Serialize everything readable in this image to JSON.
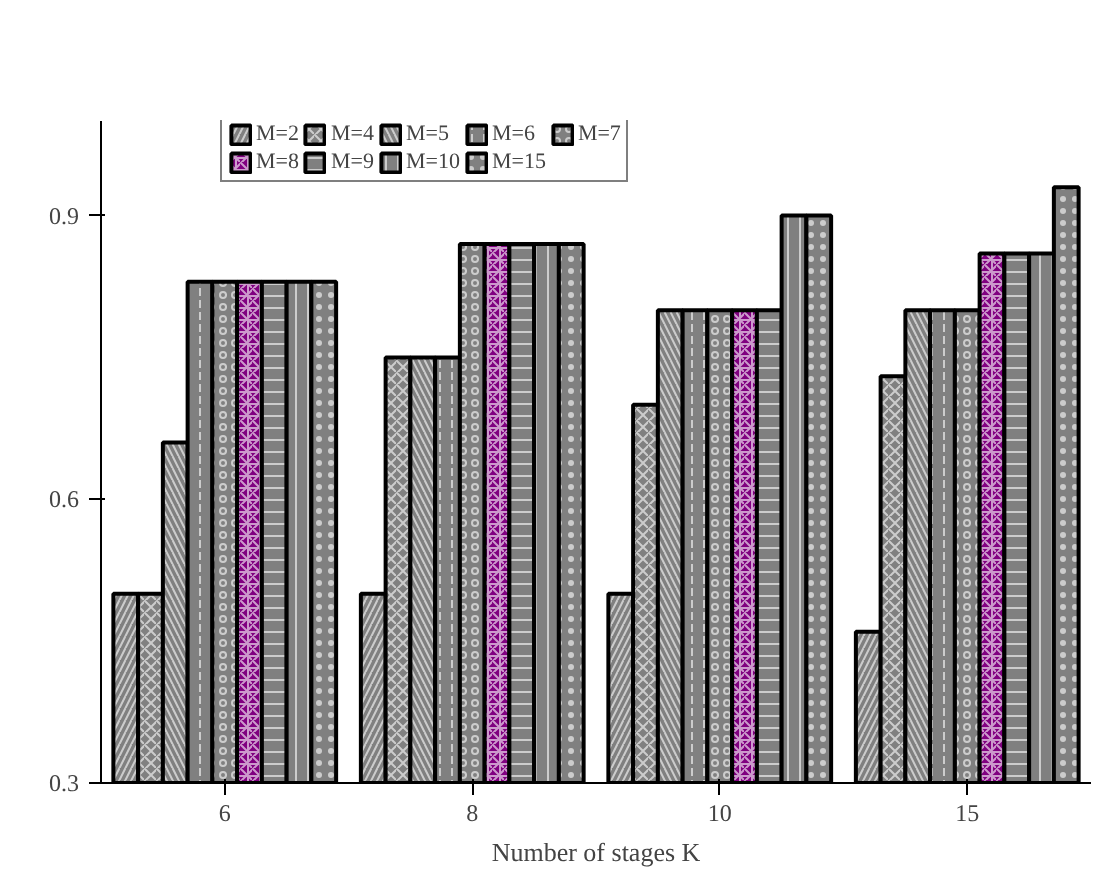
{
  "chart_data": {
    "type": "bar",
    "xlabel": "Number of stages K",
    "categories": [
      "6",
      "8",
      "10",
      "15"
    ],
    "ylim": [
      0.3,
      1.0
    ],
    "yticks": [
      0.3,
      0.6,
      0.9
    ],
    "grid": false,
    "legend": "top",
    "series": [
      {
        "name": "M=2",
        "color": "#808080",
        "values": [
          0.5,
          0.5,
          0.5,
          0.46
        ]
      },
      {
        "name": "M=4",
        "color": "#808080",
        "values": [
          0.5,
          0.75,
          0.7,
          0.73
        ]
      },
      {
        "name": "M=5",
        "color": "#808080",
        "values": [
          0.66,
          0.75,
          0.8,
          0.8
        ]
      },
      {
        "name": "M=6",
        "color": "#808080",
        "values": [
          0.83,
          0.75,
          0.8,
          0.8
        ]
      },
      {
        "name": "M=7",
        "color": "#808080",
        "values": [
          0.83,
          0.87,
          0.8,
          0.8
        ]
      },
      {
        "name": "M=8",
        "color": "#800080",
        "values": [
          0.83,
          0.87,
          0.8,
          0.86
        ]
      },
      {
        "name": "M=9",
        "color": "#808080",
        "values": [
          0.83,
          0.87,
          0.8,
          0.86
        ]
      },
      {
        "name": "M=10",
        "color": "#808080",
        "values": [
          0.83,
          0.87,
          0.9,
          0.86
        ]
      },
      {
        "name": "M=15",
        "color": "#808080",
        "values": [
          0.83,
          0.87,
          0.9,
          0.93
        ]
      }
    ]
  }
}
